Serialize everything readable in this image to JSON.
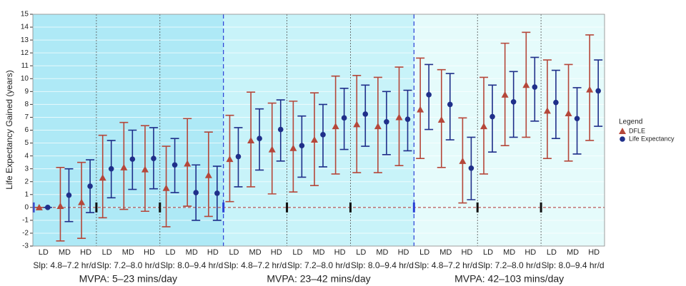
{
  "chart_data": {
    "type": "errorbar",
    "y_label": "Life Expectancy Gained (years)",
    "categories": [
      "LD",
      "MD",
      "HD",
      "LD",
      "MD",
      "HD",
      "LD",
      "MD",
      "HD",
      "LD",
      "MD",
      "HD",
      "LD",
      "MD",
      "HD",
      "LD",
      "MD",
      "HD",
      "LD",
      "MD",
      "HD",
      "LD",
      "MD",
      "HD",
      "LD",
      "MD",
      "HD"
    ],
    "sleep_groups": [
      "Slp: 4.8–7.2 hr/d",
      "Slp: 7.2–8.0 hr/d",
      "Slp: 8.0–9.4 hr/d",
      "Slp: 4.8–7.2 hr/d",
      "Slp: 7.2–8.0 hr/d",
      "Slp: 8.0–9.4 hr/d",
      "Slp: 4.8–7.2 hr/d",
      "Slp: 7.2–8.0 hr/d",
      "Slp: 8.0–9.4 hr/d"
    ],
    "mvpa_groups": [
      "MVPA: 5–23 mins/day",
      "MVPA: 23–42 mins/day",
      "MVPA: 42–103 mins/day"
    ],
    "panel_colors": [
      "#aee9f6",
      "#c8f3f9",
      "#e5fbfb"
    ],
    "legend_title": "Legend",
    "legend_position": "right",
    "grid": true,
    "series": [
      {
        "name": "DFLE",
        "color": "#b5473a",
        "marker": "triangle",
        "values": [
          0,
          0.1,
          0.4,
          2.3,
          3.1,
          2.95,
          1.5,
          3.4,
          2.5,
          3.75,
          5.2,
          4.5,
          4.6,
          5.25,
          6.3,
          6.45,
          6.3,
          7.0,
          7.6,
          6.8,
          3.6,
          6.3,
          8.75,
          9.5,
          7.5,
          7.3,
          9.15
        ],
        "lower": [
          0,
          -2.6,
          -2.4,
          -0.8,
          -0.15,
          -0.3,
          -1.5,
          0.1,
          -0.7,
          0.45,
          1.6,
          1.05,
          1.2,
          1.7,
          2.6,
          2.7,
          2.7,
          3.25,
          3.8,
          3.1,
          0.35,
          2.6,
          4.8,
          5.45,
          3.8,
          3.6,
          5.2
        ],
        "upper": [
          0,
          3.1,
          3.5,
          5.6,
          6.6,
          6.35,
          4.75,
          6.9,
          5.85,
          7.15,
          8.95,
          8.1,
          8.25,
          8.9,
          10.2,
          10.25,
          10.1,
          10.9,
          11.6,
          10.7,
          6.95,
          10.1,
          12.75,
          13.6,
          11.45,
          11.1,
          13.4
        ]
      },
      {
        "name": "Life Expectancy",
        "color": "#1f2f8a",
        "marker": "circle",
        "values": [
          0,
          0.95,
          1.65,
          3.0,
          3.75,
          3.8,
          3.3,
          1.15,
          1.1,
          3.95,
          5.35,
          6.05,
          4.8,
          5.65,
          6.95,
          7.25,
          6.65,
          6.85,
          8.75,
          8.0,
          3.05,
          7.05,
          8.2,
          9.35,
          8.15,
          6.9,
          9.05
        ],
        "lower": [
          0,
          -1.1,
          -0.4,
          0.75,
          1.4,
          1.45,
          1.15,
          -1.0,
          -1.0,
          1.6,
          2.9,
          3.6,
          2.35,
          3.15,
          4.5,
          4.75,
          4.1,
          4.4,
          6.05,
          5.25,
          0.6,
          4.3,
          5.45,
          6.7,
          5.35,
          4.15,
          6.3
        ],
        "upper": [
          0,
          3.0,
          3.7,
          5.2,
          6.0,
          6.2,
          5.35,
          3.3,
          3.2,
          6.2,
          7.65,
          8.35,
          7.1,
          8.0,
          9.25,
          9.5,
          9.0,
          9.1,
          11.1,
          10.4,
          5.45,
          9.5,
          10.55,
          11.65,
          10.65,
          9.3,
          11.45
        ]
      }
    ],
    "ylim": [
      -3,
      15
    ],
    "yticks": [
      -3,
      -2,
      -1,
      0,
      1,
      2,
      3,
      4,
      5,
      6,
      7,
      8,
      9,
      10,
      11,
      12,
      13,
      14,
      15
    ]
  }
}
